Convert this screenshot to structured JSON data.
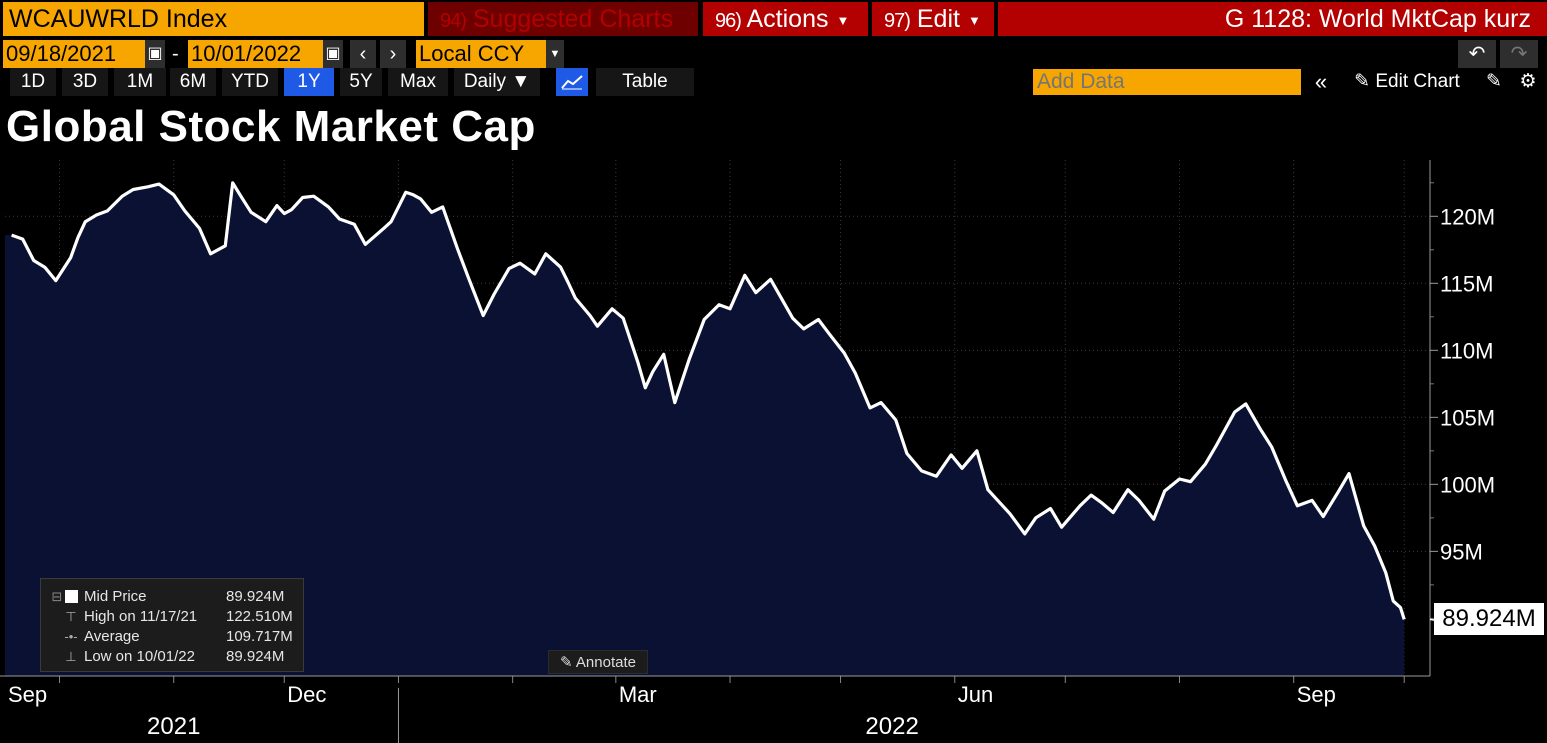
{
  "header": {
    "ticker": "WCAUWRLD Index",
    "suggested_num": "94)",
    "suggested_label": "Suggested Charts",
    "actions_num": "96)",
    "actions_label": "Actions",
    "edit_num": "97)",
    "edit_label": "Edit",
    "graph_title": "G 1128: World MktCap kurz"
  },
  "dates": {
    "start": "09/18/2021",
    "end": "10/01/2022",
    "separator": "-",
    "currency": "Local CCY"
  },
  "ranges": [
    "1D",
    "3D",
    "1M",
    "6M",
    "YTD",
    "1Y",
    "5Y",
    "Max"
  ],
  "active_range": "1Y",
  "toolbar": {
    "frequency": "Daily ▼",
    "table_label": "Table",
    "add_data_placeholder": "Add Data",
    "edit_chart_label": "Edit Chart"
  },
  "legend": {
    "rows": [
      {
        "name": "Mid Price",
        "value": "89.924M"
      },
      {
        "name": "High on 11/17/21",
        "value": "122.510M"
      },
      {
        "name": "Average",
        "value": "109.717M"
      },
      {
        "name": "Low on 10/01/22",
        "value": "89.924M"
      }
    ]
  },
  "annotate_label": "Annotate",
  "last_value_label": "89.924M",
  "colors": {
    "accent_orange": "#f7a600",
    "header_red": "#b30000",
    "plot_fill": "#0a1133",
    "line": "#ffffff"
  },
  "chart_data": {
    "type": "area",
    "title": "Global Stock Market Cap",
    "xlabel": "",
    "ylabel": "",
    "ylim": [
      85.7,
      124.2
    ],
    "xlim": [
      "2021-09-18",
      "2022-10-08"
    ],
    "y_ticks": [
      {
        "value": 95,
        "label": "95M"
      },
      {
        "value": 100,
        "label": "100M"
      },
      {
        "value": 105,
        "label": "105M"
      },
      {
        "value": 110,
        "label": "110M"
      },
      {
        "value": 115,
        "label": "115M"
      },
      {
        "value": 120,
        "label": "120M"
      }
    ],
    "x_ticks": [
      {
        "date": "2021-09-01",
        "label": "Sep"
      },
      {
        "date": "2021-12-01",
        "label": "Dec"
      },
      {
        "date": "2022-03-01",
        "label": "Mar"
      },
      {
        "date": "2022-06-01",
        "label": "Jun"
      },
      {
        "date": "2022-09-01",
        "label": "Sep"
      }
    ],
    "year_labels": [
      {
        "date": "2021-11-01",
        "label": "2021"
      },
      {
        "date": "2022-05-15",
        "label": "2022"
      }
    ],
    "year_boundary": "2022-01-01",
    "series": [
      {
        "name": "Mid Price",
        "x": [
          "2021-09-18",
          "2021-09-21",
          "2021-09-24",
          "2021-09-27",
          "2021-09-30",
          "2021-10-04",
          "2021-10-06",
          "2021-10-08",
          "2021-10-11",
          "2021-10-14",
          "2021-10-18",
          "2021-10-21",
          "2021-10-25",
          "2021-10-28",
          "2021-11-01",
          "2021-11-04",
          "2021-11-08",
          "2021-11-11",
          "2021-11-15",
          "2021-11-17",
          "2021-11-19",
          "2021-11-22",
          "2021-11-26",
          "2021-11-29",
          "2021-12-01",
          "2021-12-03",
          "2021-12-06",
          "2021-12-09",
          "2021-12-13",
          "2021-12-16",
          "2021-12-20",
          "2021-12-23",
          "2021-12-28",
          "2021-12-30",
          "2022-01-03",
          "2022-01-05",
          "2022-01-07",
          "2022-01-10",
          "2022-01-13",
          "2022-01-17",
          "2022-01-20",
          "2022-01-24",
          "2022-01-27",
          "2022-01-31",
          "2022-02-03",
          "2022-02-07",
          "2022-02-10",
          "2022-02-14",
          "2022-02-16",
          "2022-02-18",
          "2022-02-22",
          "2022-02-24",
          "2022-02-28",
          "2022-03-03",
          "2022-03-07",
          "2022-03-09",
          "2022-03-11",
          "2022-03-14",
          "2022-03-17",
          "2022-03-21",
          "2022-03-25",
          "2022-03-29",
          "2022-04-01",
          "2022-04-05",
          "2022-04-08",
          "2022-04-12",
          "2022-04-18",
          "2022-04-21",
          "2022-04-25",
          "2022-04-28",
          "2022-05-02",
          "2022-05-05",
          "2022-05-09",
          "2022-05-12",
          "2022-05-16",
          "2022-05-19",
          "2022-05-23",
          "2022-05-27",
          "2022-05-31",
          "2022-06-03",
          "2022-06-07",
          "2022-06-10",
          "2022-06-13",
          "2022-06-16",
          "2022-06-20",
          "2022-06-23",
          "2022-06-27",
          "2022-06-30",
          "2022-07-05",
          "2022-07-08",
          "2022-07-11",
          "2022-07-14",
          "2022-07-18",
          "2022-07-21",
          "2022-07-25",
          "2022-07-28",
          "2022-08-01",
          "2022-08-04",
          "2022-08-08",
          "2022-08-11",
          "2022-08-16",
          "2022-08-19",
          "2022-08-23",
          "2022-08-26",
          "2022-08-30",
          "2022-09-02",
          "2022-09-06",
          "2022-09-09",
          "2022-09-13",
          "2022-09-16",
          "2022-09-20",
          "2022-09-23",
          "2022-09-26",
          "2022-09-28",
          "2022-09-30",
          "2022-10-01"
        ],
        "values": [
          118.6,
          118.3,
          116.7,
          116.2,
          115.2,
          116.9,
          118.4,
          119.6,
          120.1,
          120.4,
          121.5,
          122.0,
          122.2,
          122.4,
          121.6,
          120.4,
          119.1,
          117.2,
          117.8,
          122.5,
          121.6,
          120.3,
          119.6,
          120.8,
          120.2,
          120.5,
          121.4,
          121.5,
          120.7,
          119.8,
          119.4,
          117.9,
          119.1,
          119.6,
          121.8,
          121.6,
          121.3,
          120.3,
          120.7,
          117.6,
          115.4,
          112.6,
          114.2,
          116.1,
          116.5,
          115.7,
          117.2,
          116.2,
          115.1,
          113.9,
          112.6,
          111.8,
          113.1,
          112.4,
          109.1,
          107.2,
          108.4,
          109.7,
          106.1,
          109.4,
          112.3,
          113.4,
          113.1,
          115.6,
          114.3,
          115.3,
          112.4,
          111.6,
          112.3,
          111.2,
          109.8,
          108.3,
          105.7,
          106.1,
          104.8,
          102.3,
          101.0,
          100.6,
          102.2,
          101.2,
          102.5,
          99.6,
          98.7,
          97.8,
          96.3,
          97.5,
          98.2,
          96.8,
          98.4,
          99.2,
          98.6,
          97.9,
          99.6,
          98.8,
          97.4,
          99.5,
          100.4,
          100.2,
          101.5,
          102.9,
          105.4,
          106.0,
          104.1,
          102.8,
          100.2,
          98.4,
          98.8,
          97.6,
          99.4,
          100.8,
          96.9,
          95.4,
          93.4,
          91.3,
          90.8,
          89.924
        ]
      }
    ]
  }
}
